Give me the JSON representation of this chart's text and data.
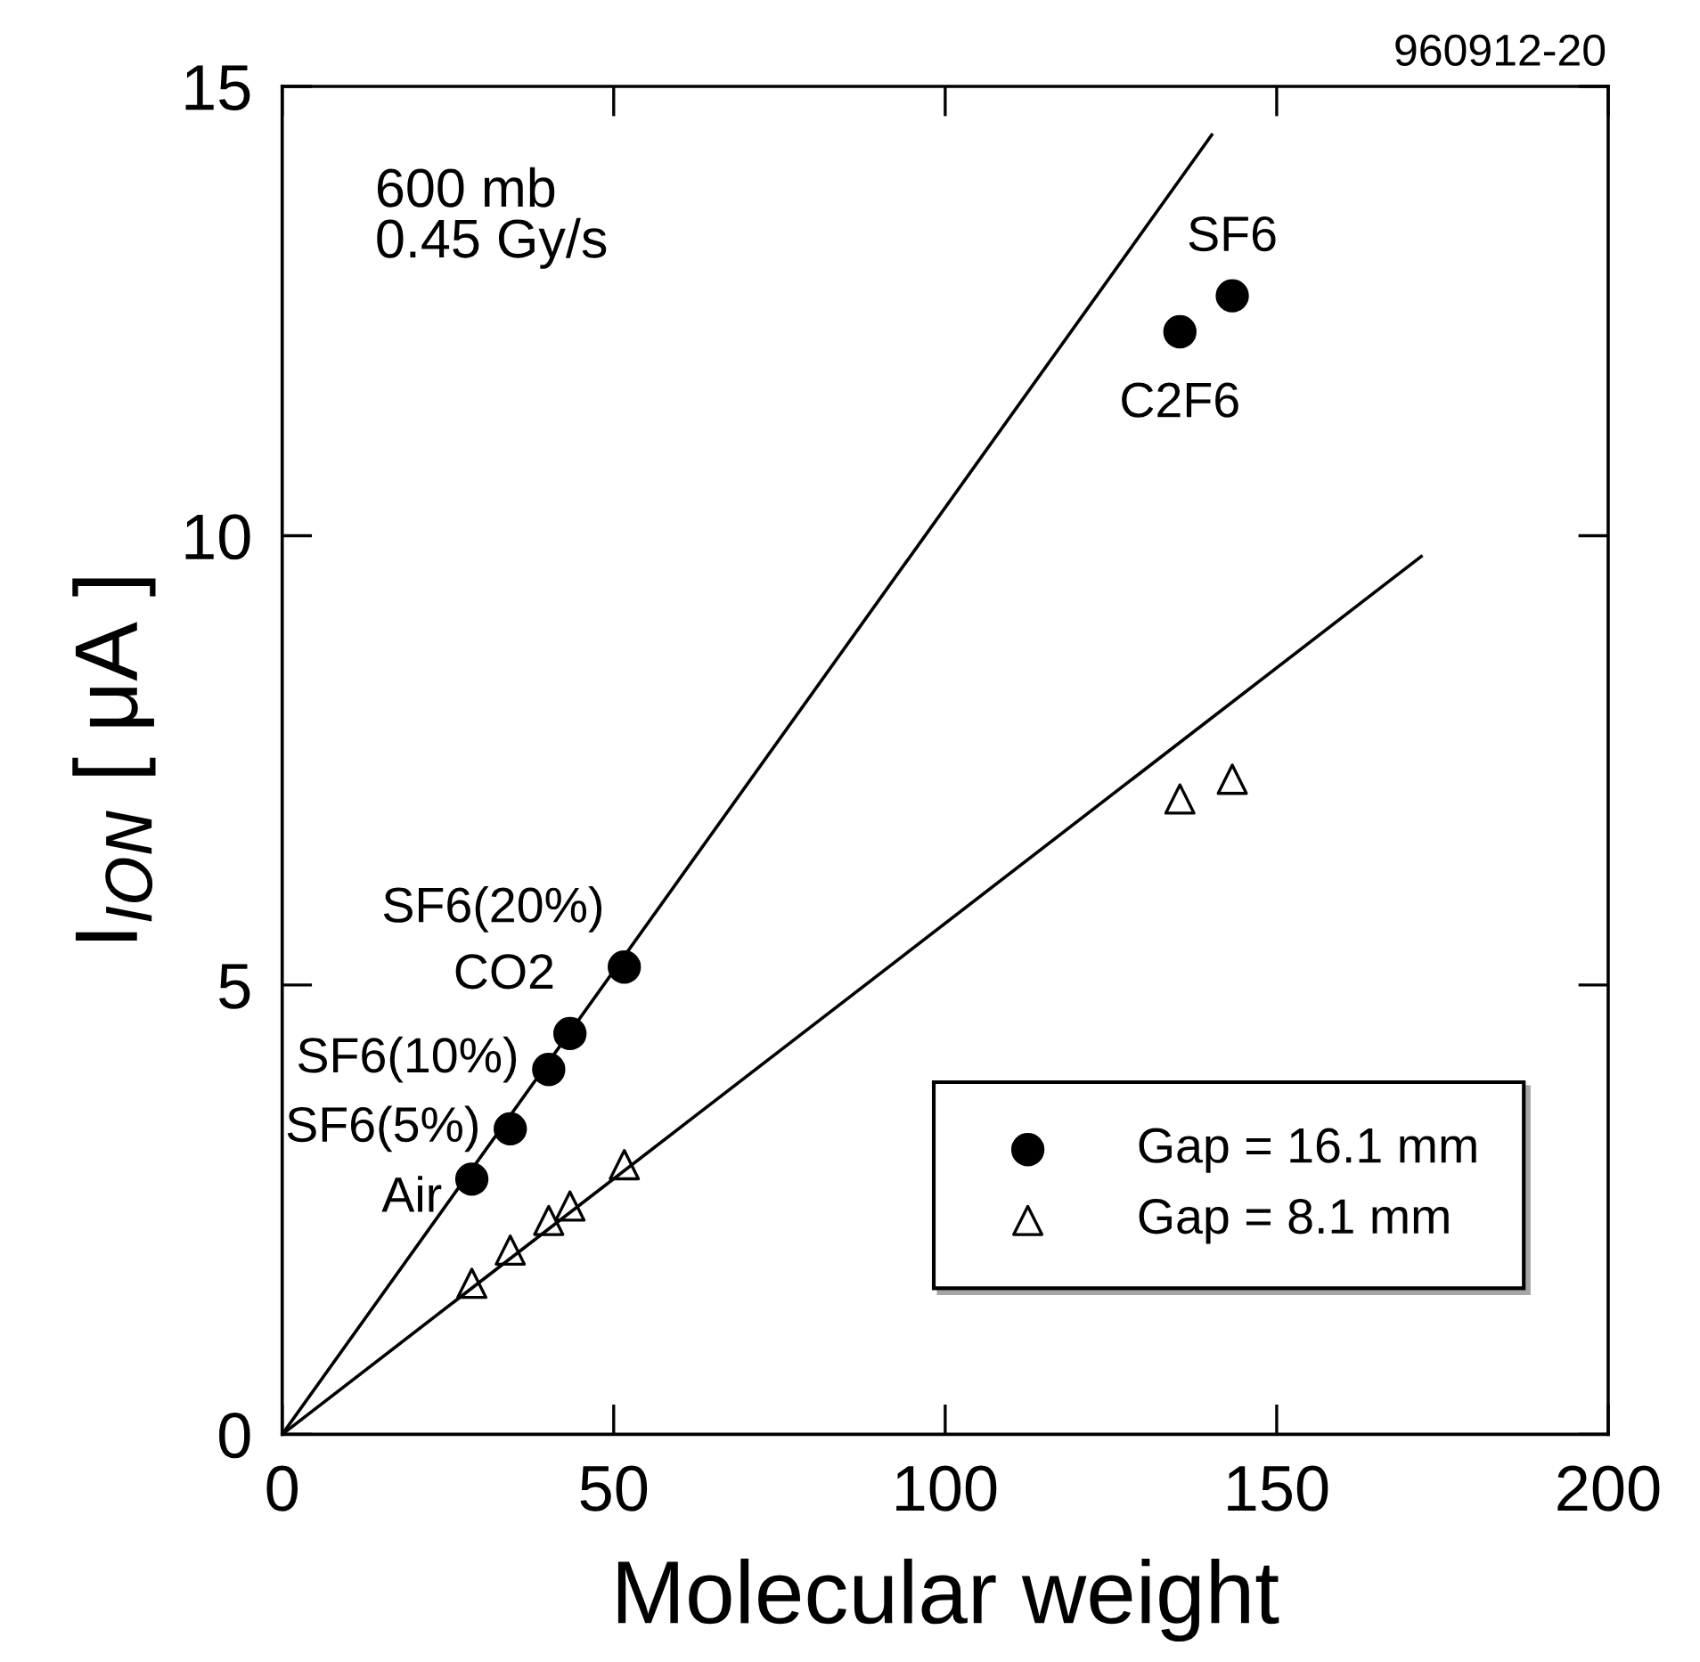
{
  "chart_data": {
    "type": "scatter",
    "xlabel": "Molecular weight",
    "ylabel": "I$_{ION}$ [ μA ]",
    "xlim": [
      0,
      200
    ],
    "xticks": [
      0,
      50,
      100,
      150,
      200
    ],
    "ylim": [
      0,
      15
    ],
    "yticks": [
      0,
      5,
      10,
      15
    ],
    "grid": false,
    "legend": "bottom right",
    "series": [
      {
        "name": "Gap = 16.1 mm",
        "marker": "circle",
        "color": "#000000",
        "x": [
          28.6,
          34.4,
          40.2,
          43.4,
          51.6,
          135.4,
          143.3
        ],
        "values": [
          2.84,
          3.4,
          4.06,
          4.46,
          5.2,
          12.27,
          12.67
        ]
      },
      {
        "name": "Gap = 8.1 mm",
        "marker": "triangle",
        "color": "#000000",
        "x": [
          28.6,
          34.4,
          40.2,
          43.4,
          51.6,
          135.4,
          143.3
        ],
        "values": [
          1.68,
          2.05,
          2.38,
          2.54,
          3.0,
          7.07,
          7.29
        ]
      },
      {
        "type": "line",
        "marker": "none",
        "line_style": "solid",
        "color": "#000000",
        "x": [
          0,
          140.2
        ],
        "values": [
          0,
          14.46
        ]
      },
      {
        "type": "line",
        "marker": "none",
        "line_style": "solid",
        "color": "#000000",
        "x": [
          0,
          171.8
        ],
        "values": [
          0,
          9.77
        ]
      }
    ],
    "annotations": [
      "960912-20",
      "600 mb\n0.45 Gy/s",
      {
        "text": "Air",
        "x": 28.6,
        "y": 2.84
      },
      {
        "text": "SF6(5%)",
        "x": 34.4,
        "y": 3.4
      },
      {
        "text": "SF6(10%)",
        "x": 40.2,
        "y": 4.06
      },
      {
        "text": "CO2",
        "x": 43.4,
        "y": 4.46
      },
      {
        "text": "SF6(20%)",
        "x": 51.6,
        "y": 5.2
      },
      {
        "text": "C2F6",
        "x": 135.4,
        "y": 12.27
      },
      {
        "text": "SF6",
        "x": 143.3,
        "y": 12.67
      }
    ]
  }
}
